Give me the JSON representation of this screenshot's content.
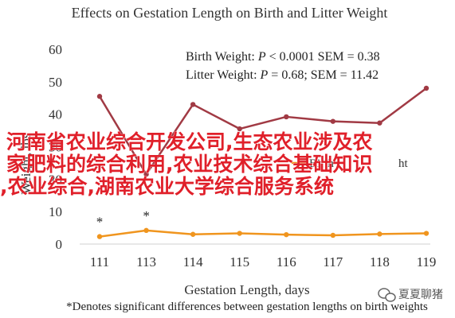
{
  "chart_data": {
    "type": "line",
    "title": "Effects on Gestation Length on Birth and Litter Weight",
    "xlabel": "Gestation Length, days",
    "ylabel": "Weight, lbs",
    "x": [
      "111",
      "113",
      "114",
      "115",
      "116",
      "117",
      "118",
      "119"
    ],
    "ylim": [
      0,
      60
    ],
    "yticks": [
      "0",
      "10",
      "20",
      "30",
      "40",
      "50",
      "60"
    ],
    "grid": false,
    "series": [
      {
        "name": "Litter Weight",
        "color": "#a13a44",
        "values": [
          45.5,
          21.5,
          43.0,
          35.5,
          39.2,
          37.8,
          37.3,
          48.0
        ]
      },
      {
        "name": "Birth Weight",
        "color": "#f0951e",
        "values": [
          2.3,
          4.2,
          3.0,
          3.3,
          2.9,
          2.7,
          3.1,
          3.3
        ]
      }
    ],
    "stats": [
      {
        "prefix": "Birth Weight: ",
        "p": "P",
        "rest": " < 0.0001 SEM = 0.38"
      },
      {
        "prefix": "Litter Weight: ",
        "p": "P",
        "rest": " = 0.68; SEM = 11.42"
      }
    ],
    "asterisk": "*",
    "asterisk_x": [
      "111",
      "113"
    ],
    "legend_text": "Birth",
    "legend_text2": "ht",
    "footnote": "*Denotes significant differences between gestation lengths on birth weights"
  },
  "watermark": {
    "lines": [
      "河南省农业综合开发公司,生态农业涉及农",
      "家肥料的综合利用,农业技术综合基础知识",
      ",农业综合,湖南农业大学综合服务系统"
    ],
    "color": "#e0202a"
  },
  "logo": {
    "text": "夏夏聊猪",
    "icon": "wechat-icon"
  }
}
